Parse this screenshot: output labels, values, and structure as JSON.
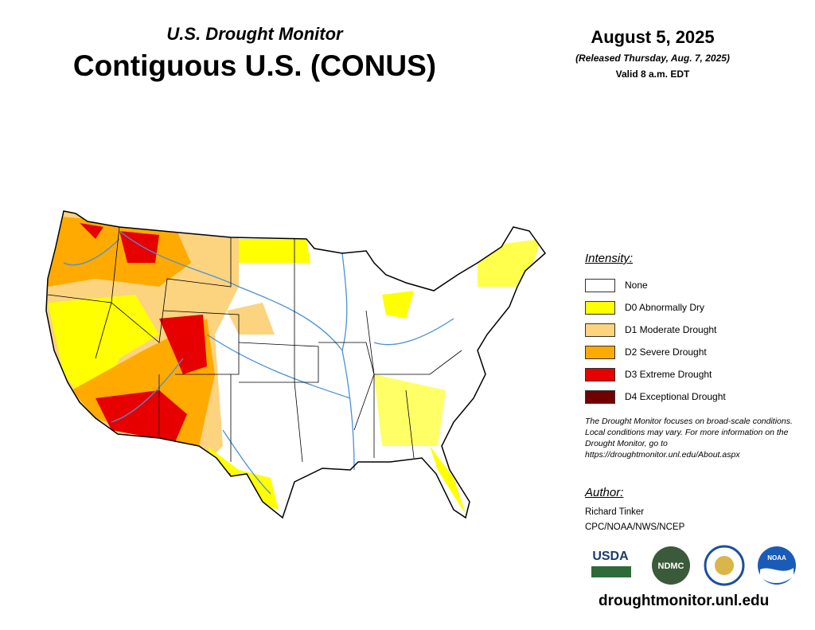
{
  "header": {
    "subtitle": "U.S. Drought Monitor",
    "title": "Contiguous U.S. (CONUS)"
  },
  "date": {
    "date": "August 5, 2025",
    "released": "(Released Thursday, Aug. 7, 2025)",
    "valid": "Valid 8 a.m. EDT"
  },
  "legend": {
    "title": "Intensity:",
    "items": [
      {
        "label": "None",
        "color": "#ffffff"
      },
      {
        "label": "D0 Abnormally Dry",
        "color": "#ffff00"
      },
      {
        "label": "D1 Moderate Drought",
        "color": "#fcd37f"
      },
      {
        "label": "D2 Severe Drought",
        "color": "#ffaa00"
      },
      {
        "label": "D3 Extreme Drought",
        "color": "#e60000"
      },
      {
        "label": "D4 Exceptional Drought",
        "color": "#730000"
      }
    ]
  },
  "note": "The Drought Monitor focuses on broad-scale conditions. Local conditions may vary. For more information on the Drought Monitor, go to https://droughtmonitor.unl.edu/About.aspx",
  "author": {
    "heading": "Author:",
    "name": "Richard Tinker",
    "org": "CPC/NOAA/NWS/NCEP"
  },
  "logos": [
    "USDA",
    "NDMC",
    "NOAA"
  ],
  "url": "droughtmonitor.unl.edu"
}
